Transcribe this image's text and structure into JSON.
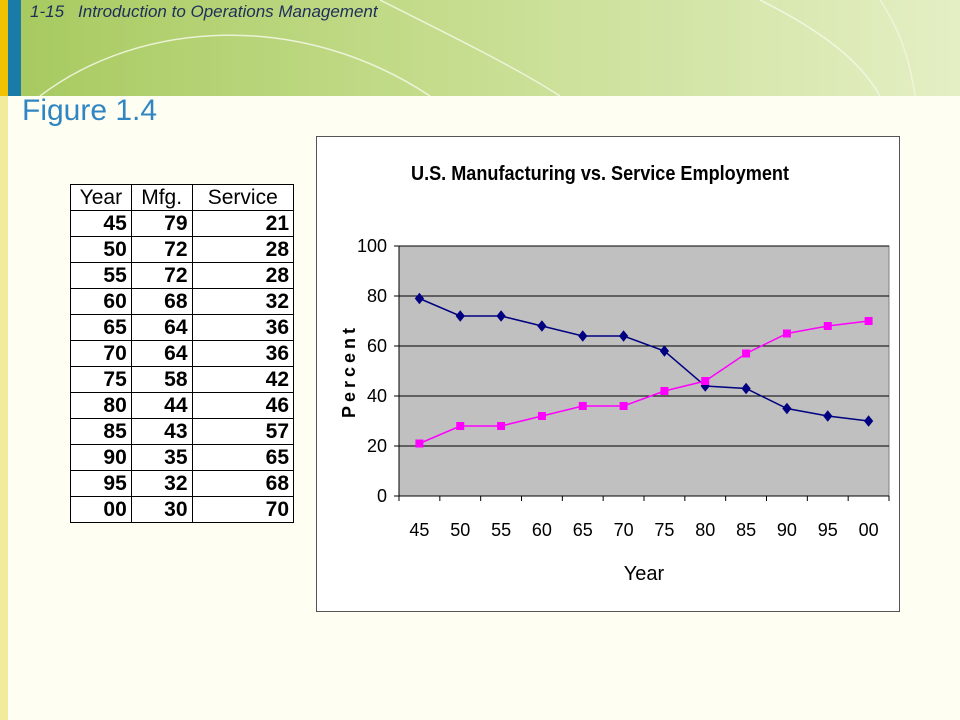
{
  "header": {
    "slide_number": "1-15",
    "course_title": "Introduction to Operations Management"
  },
  "figure_title": "Figure 1.4",
  "table": {
    "columns": [
      "Year",
      "Mfg.",
      "Service"
    ],
    "rows": [
      [
        "45",
        "79",
        "21"
      ],
      [
        "50",
        "72",
        "28"
      ],
      [
        "55",
        "72",
        "28"
      ],
      [
        "60",
        "68",
        "32"
      ],
      [
        "65",
        "64",
        "36"
      ],
      [
        "70",
        "64",
        "36"
      ],
      [
        "75",
        "58",
        "42"
      ],
      [
        "80",
        "44",
        "46"
      ],
      [
        "85",
        "43",
        "57"
      ],
      [
        "90",
        "35",
        "65"
      ],
      [
        "95",
        "32",
        "68"
      ],
      [
        "00",
        "30",
        "70"
      ]
    ]
  },
  "chart_data": {
    "type": "line",
    "title": "U.S. Manufacturing vs. Service Employment",
    "xlabel": "Year",
    "ylabel": "Percent",
    "categories": [
      "45",
      "50",
      "55",
      "60",
      "65",
      "70",
      "75",
      "80",
      "85",
      "90",
      "95",
      "00"
    ],
    "ylim": [
      0,
      100
    ],
    "yticks": [
      0,
      20,
      40,
      60,
      80,
      100
    ],
    "grid": true,
    "legend": "none",
    "series": [
      {
        "values": [
          79,
          72,
          72,
          68,
          64,
          64,
          58,
          44,
          43,
          35,
          32,
          30
        ],
        "color": "#000080",
        "marker": "diamond"
      },
      {
        "values": [
          21,
          28,
          28,
          32,
          36,
          36,
          42,
          46,
          57,
          65,
          68,
          70
        ],
        "color": "#ff00ff",
        "marker": "square"
      }
    ],
    "plot_background": "#c0c0c0"
  }
}
